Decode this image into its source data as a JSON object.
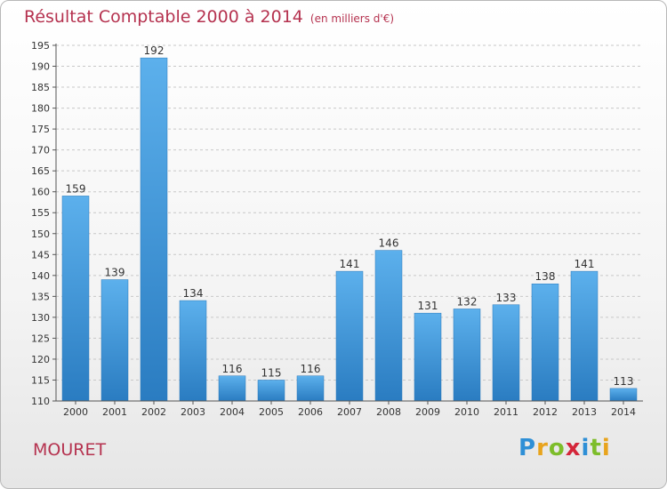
{
  "header": {
    "title": "Résultat Comptable 2000 à 2014",
    "subtitle": "(en milliers d'€)"
  },
  "commune": "MOURET",
  "logo": {
    "text": "Proxiti",
    "colors": [
      "#2e8fd6",
      "#e8a41d",
      "#7dbd2a",
      "#d4263a",
      "#2e8fd6",
      "#7dbd2a",
      "#e8a41d"
    ]
  },
  "chart_data": {
    "type": "bar",
    "categories": [
      "2000",
      "2001",
      "2002",
      "2003",
      "2004",
      "2005",
      "2006",
      "2007",
      "2008",
      "2009",
      "2010",
      "2011",
      "2012",
      "2013",
      "2014"
    ],
    "values": [
      159,
      139,
      192,
      134,
      116,
      115,
      116,
      141,
      146,
      131,
      132,
      133,
      138,
      141,
      113
    ],
    "ylim": [
      110,
      195
    ],
    "yticks": [
      110,
      115,
      120,
      125,
      130,
      135,
      140,
      145,
      150,
      155,
      160,
      165,
      170,
      175,
      180,
      185,
      190,
      195
    ],
    "grid": "horizontal-dashed",
    "bar_color": "#3d95dc"
  }
}
